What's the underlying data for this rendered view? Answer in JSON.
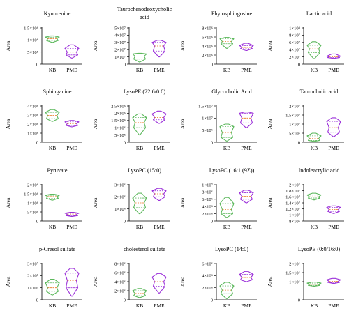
{
  "colors": {
    "kb": "#5cb85c",
    "pme": "#9b30d9",
    "median": "#e8741c",
    "axis": "#000000"
  },
  "chart_data": [
    {
      "type": "violin",
      "title": [
        "Kynurenine"
      ],
      "ylabel": "Area",
      "ylim": [
        0,
        1500000
      ],
      "yticks": [
        {
          "v": 0,
          "t": "0"
        },
        {
          "v": 500000,
          "t": "5×10⁵"
        },
        {
          "v": 1000000,
          "t": "1×10⁶"
        },
        {
          "v": 1500000,
          "t": "1.5×10⁶"
        }
      ],
      "categories": [
        "KB",
        "PME"
      ],
      "series": [
        {
          "min": 900000,
          "q1": 980000,
          "median": 1050000,
          "q3": 1120000,
          "max": 1170000
        },
        {
          "min": 250000,
          "q1": 380000,
          "median": 500000,
          "q3": 650000,
          "max": 800000
        }
      ]
    },
    {
      "type": "violin",
      "title": [
        "Taurochenodeoxycholic",
        "acid"
      ],
      "ylabel": "Area",
      "ylim": [
        0,
        50000000
      ],
      "yticks": [
        {
          "v": 0,
          "t": "0"
        },
        {
          "v": 10000000,
          "t": "1×10⁷"
        },
        {
          "v": 20000000,
          "t": "2×10⁷"
        },
        {
          "v": 30000000,
          "t": "3×10⁷"
        },
        {
          "v": 40000000,
          "t": "4×10⁷"
        },
        {
          "v": 50000000,
          "t": "5×10⁷"
        }
      ],
      "categories": [
        "KB",
        "PME"
      ],
      "series": [
        {
          "min": 3000000,
          "q1": 7000000,
          "median": 11000000,
          "q3": 14000000,
          "max": 15000000
        },
        {
          "min": 10000000,
          "q1": 18000000,
          "median": 25000000,
          "q3": 30000000,
          "max": 33000000
        }
      ]
    },
    {
      "type": "violin",
      "title": [
        "Phytosphingosine"
      ],
      "ylabel": "Area",
      "ylim": [
        0,
        8000000
      ],
      "yticks": [
        {
          "v": 0,
          "t": "0"
        },
        {
          "v": 2000000,
          "t": "2×10⁶"
        },
        {
          "v": 4000000,
          "t": "4×10⁶"
        },
        {
          "v": 6000000,
          "t": "6×10⁶"
        },
        {
          "v": 8000000,
          "t": "8×10⁶"
        }
      ],
      "categories": [
        "KB",
        "PME"
      ],
      "series": [
        {
          "min": 3500000,
          "q1": 4500000,
          "median": 5000000,
          "q3": 5600000,
          "max": 5900000
        },
        {
          "min": 3000000,
          "q1": 3400000,
          "median": 3700000,
          "q3": 4100000,
          "max": 4600000
        }
      ]
    },
    {
      "type": "violin",
      "title": [
        "Lactic acid"
      ],
      "ylabel": "Area",
      "ylim": [
        0,
        100000000
      ],
      "yticks": [
        {
          "v": 0,
          "t": "0"
        },
        {
          "v": 20000000,
          "t": "2×10⁷"
        },
        {
          "v": 40000000,
          "t": "4×10⁷"
        },
        {
          "v": 60000000,
          "t": "6×10⁷"
        },
        {
          "v": 80000000,
          "t": "8×10⁷"
        },
        {
          "v": 100000000,
          "t": "1×10⁸"
        }
      ],
      "categories": [
        "KB",
        "PME"
      ],
      "series": [
        {
          "min": 15000000,
          "q1": 32000000,
          "median": 42000000,
          "q3": 52000000,
          "max": 62000000
        },
        {
          "min": 16000000,
          "q1": 18000000,
          "median": 20000000,
          "q3": 22000000,
          "max": 28000000
        }
      ]
    },
    {
      "type": "violin",
      "title": [
        "Sphinganine"
      ],
      "ylabel": "Area",
      "ylim": [
        0,
        4000000
      ],
      "yticks": [
        {
          "v": 0,
          "t": "0"
        },
        {
          "v": 1000000,
          "t": "1×10⁶"
        },
        {
          "v": 2000000,
          "t": "2×10⁶"
        },
        {
          "v": 3000000,
          "t": "3×10⁶"
        },
        {
          "v": 4000000,
          "t": "4×10⁶"
        }
      ],
      "categories": [
        "KB",
        "PME"
      ],
      "series": [
        {
          "min": 2300000,
          "q1": 2600000,
          "median": 2950000,
          "q3": 3300000,
          "max": 3600000
        },
        {
          "min": 1700000,
          "q1": 1850000,
          "median": 2050000,
          "q3": 2250000,
          "max": 2400000
        }
      ]
    },
    {
      "type": "violin",
      "title": [
        "LysoPE (22:6/0:0)"
      ],
      "ylabel": "Area",
      "ylim": [
        0,
        2500000
      ],
      "yticks": [
        {
          "v": 0,
          "t": "0"
        },
        {
          "v": 500000,
          "t": "5×10⁵"
        },
        {
          "v": 1000000,
          "t": "1×10⁶"
        },
        {
          "v": 1500000,
          "t": "1.5×10⁶"
        },
        {
          "v": 2000000,
          "t": "2×10⁶"
        },
        {
          "v": 2500000,
          "t": "2.5×10⁶"
        }
      ],
      "categories": [
        "KB",
        "PME"
      ],
      "series": [
        {
          "min": 500000,
          "q1": 1000000,
          "median": 1350000,
          "q3": 1700000,
          "max": 1950000
        },
        {
          "min": 1300000,
          "q1": 1550000,
          "median": 1700000,
          "q3": 1950000,
          "max": 2150000
        }
      ]
    },
    {
      "type": "violin",
      "title": [
        "Glycocholic Acid"
      ],
      "ylabel": "Area",
      "ylim": [
        0,
        15000000
      ],
      "yticks": [
        {
          "v": 0,
          "t": "0"
        },
        {
          "v": 5000000,
          "t": "5×10⁶"
        },
        {
          "v": 10000000,
          "t": "1×10⁷"
        },
        {
          "v": 15000000,
          "t": "1.5×10⁷"
        }
      ],
      "categories": [
        "KB",
        "PME"
      ],
      "series": [
        {
          "min": 500000,
          "q1": 2000000,
          "median": 4000000,
          "q3": 6500000,
          "max": 7500000
        },
        {
          "min": 6000000,
          "q1": 8000000,
          "median": 10000000,
          "q3": 12000000,
          "max": 12500000
        }
      ]
    },
    {
      "type": "violin",
      "title": [
        "Taurocholic acid"
      ],
      "ylabel": "Area",
      "ylim": [
        0,
        20000000
      ],
      "yticks": [
        {
          "v": 0,
          "t": "0"
        },
        {
          "v": 5000000,
          "t": "5×10⁶"
        },
        {
          "v": 10000000,
          "t": "1×10⁷"
        },
        {
          "v": 15000000,
          "t": "1.5×10⁷"
        },
        {
          "v": 20000000,
          "t": "2×10⁷"
        }
      ],
      "categories": [
        "KB",
        "PME"
      ],
      "series": [
        {
          "min": 500000,
          "q1": 1000000,
          "median": 2000000,
          "q3": 3500000,
          "max": 5000000
        },
        {
          "min": 3000000,
          "q1": 5500000,
          "median": 8000000,
          "q3": 11500000,
          "max": 13500000
        }
      ]
    },
    {
      "type": "violin",
      "title": [
        "Pyruvate"
      ],
      "ylabel": "Area",
      "ylim": [
        0,
        2000000
      ],
      "yticks": [
        {
          "v": 0,
          "t": "0"
        },
        {
          "v": 500000,
          "t": "5×10⁵"
        },
        {
          "v": 1000000,
          "t": "1×10⁶"
        },
        {
          "v": 1500000,
          "t": "1.5×10⁶"
        },
        {
          "v": 2000000,
          "t": "2×10⁶"
        }
      ],
      "categories": [
        "KB",
        "PME"
      ],
      "series": [
        {
          "min": 1150000,
          "q1": 1250000,
          "median": 1350000,
          "q3": 1420000,
          "max": 1480000
        },
        {
          "min": 250000,
          "q1": 300000,
          "median": 380000,
          "q3": 430000,
          "max": 480000
        }
      ]
    },
    {
      "type": "violin",
      "title": [
        "LysoPC (15:0)"
      ],
      "ylabel": "Area",
      "ylim": [
        0,
        3000000
      ],
      "yticks": [
        {
          "v": 0,
          "t": "0"
        },
        {
          "v": 1000000,
          "t": "1×10⁶"
        },
        {
          "v": 2000000,
          "t": "2×10⁶"
        },
        {
          "v": 3000000,
          "t": "3×10⁶"
        }
      ],
      "categories": [
        "KB",
        "PME"
      ],
      "series": [
        {
          "min": 600000,
          "q1": 1100000,
          "median": 1500000,
          "q3": 1900000,
          "max": 2300000
        },
        {
          "min": 1700000,
          "q1": 2000000,
          "median": 2250000,
          "q3": 2500000,
          "max": 2700000
        }
      ]
    },
    {
      "type": "violin",
      "title": [
        "LysoPC (16:1 (9Z))"
      ],
      "ylabel": "Area",
      "ylim": [
        0,
        10000000
      ],
      "yticks": [
        {
          "v": 0,
          "t": "0"
        },
        {
          "v": 2000000,
          "t": "2×10⁶"
        },
        {
          "v": 4000000,
          "t": "4×10⁶"
        },
        {
          "v": 6000000,
          "t": "6×10⁶"
        },
        {
          "v": 8000000,
          "t": "8×10⁶"
        },
        {
          "v": 10000000,
          "t": "1×10⁷"
        }
      ],
      "categories": [
        "KB",
        "PME"
      ],
      "series": [
        {
          "min": 1000000,
          "q1": 2000000,
          "median": 3200000,
          "q3": 4800000,
          "max": 6500000
        },
        {
          "min": 5000000,
          "q1": 6000000,
          "median": 6800000,
          "q3": 7800000,
          "max": 8500000
        }
      ]
    },
    {
      "type": "violin",
      "title": [
        "Indoleacrylic acid"
      ],
      "ylabel": "Area",
      "ylim": [
        8000000,
        20000000
      ],
      "yticks": [
        {
          "v": 8000000,
          "t": "8×10⁶"
        },
        {
          "v": 10000000,
          "t": "1×10⁷"
        },
        {
          "v": 12000000,
          "t": "1.2×10⁷"
        },
        {
          "v": 14000000,
          "t": "1.4×10⁷"
        },
        {
          "v": 16000000,
          "t": "1.6×10⁷"
        },
        {
          "v": 18000000,
          "t": "1.8×10⁷"
        },
        {
          "v": 20000000,
          "t": "2×10⁷"
        }
      ],
      "categories": [
        "KB",
        "PME"
      ],
      "series": [
        {
          "min": 15000000,
          "q1": 15600000,
          "median": 16000000,
          "q3": 16600000,
          "max": 17200000
        },
        {
          "min": 10500000,
          "q1": 11200000,
          "median": 11800000,
          "q3": 12500000,
          "max": 13000000
        }
      ]
    },
    {
      "type": "violin",
      "title": [
        "p-Cresol sulfate"
      ],
      "ylabel": "Area",
      "ylim": [
        0,
        30000000
      ],
      "yticks": [
        {
          "v": 0,
          "t": "0"
        },
        {
          "v": 10000000,
          "t": "1×10⁷"
        },
        {
          "v": 20000000,
          "t": "2×10⁷"
        },
        {
          "v": 30000000,
          "t": "3×10⁷"
        }
      ],
      "categories": [
        "KB",
        "PME"
      ],
      "series": [
        {
          "min": 4000000,
          "q1": 7000000,
          "median": 10000000,
          "q3": 14000000,
          "max": 17000000
        },
        {
          "min": 3000000,
          "q1": 10000000,
          "median": 16000000,
          "q3": 22000000,
          "max": 26000000
        }
      ]
    },
    {
      "type": "violin",
      "title": [
        "cholesterol sulfate"
      ],
      "ylabel": "Area",
      "ylim": [
        0,
        8000000
      ],
      "yticks": [
        {
          "v": 0,
          "t": "0"
        },
        {
          "v": 2000000,
          "t": "2×10⁶"
        },
        {
          "v": 4000000,
          "t": "4×10⁶"
        },
        {
          "v": 6000000,
          "t": "6×10⁶"
        },
        {
          "v": 8000000,
          "t": "8×10⁶"
        }
      ],
      "categories": [
        "KB",
        "PME"
      ],
      "series": [
        {
          "min": 500000,
          "q1": 900000,
          "median": 1400000,
          "q3": 2000000,
          "max": 2500000
        },
        {
          "min": 1500000,
          "q1": 3000000,
          "median": 4000000,
          "q3": 5000000,
          "max": 5800000
        }
      ]
    },
    {
      "type": "violin",
      "title": [
        "LysoPC (14:0)"
      ],
      "ylabel": "Area",
      "ylim": [
        0,
        6000000
      ],
      "yticks": [
        {
          "v": 0,
          "t": "0"
        },
        {
          "v": 2000000,
          "t": "2×10⁶"
        },
        {
          "v": 4000000,
          "t": "4×10⁶"
        },
        {
          "v": 6000000,
          "t": "6×10⁶"
        }
      ],
      "categories": [
        "KB",
        "PME"
      ],
      "series": [
        {
          "min": 200000,
          "q1": 1000000,
          "median": 1600000,
          "q3": 2300000,
          "max": 2900000
        },
        {
          "min": 3000000,
          "q1": 3300000,
          "median": 3700000,
          "q3": 4200000,
          "max": 4700000
        }
      ]
    },
    {
      "type": "violin",
      "title": [
        "LysoPE (0:0/16:0)"
      ],
      "ylabel": "Area",
      "ylim": [
        0,
        2000000
      ],
      "yticks": [
        {
          "v": 0,
          "t": "0"
        },
        {
          "v": 1000000,
          "t": "1×10⁶"
        },
        {
          "v": 1500000,
          "t": "1.5×10⁶"
        },
        {
          "v": 2000000,
          "t": "2×10⁶"
        }
      ],
      "categories": [
        "KB",
        "PME"
      ],
      "series": [
        {
          "min": 750000,
          "q1": 800000,
          "median": 850000,
          "q3": 920000,
          "max": 980000
        },
        {
          "min": 900000,
          "q1": 960000,
          "median": 1020000,
          "q3": 1100000,
          "max": 1180000
        }
      ]
    }
  ]
}
